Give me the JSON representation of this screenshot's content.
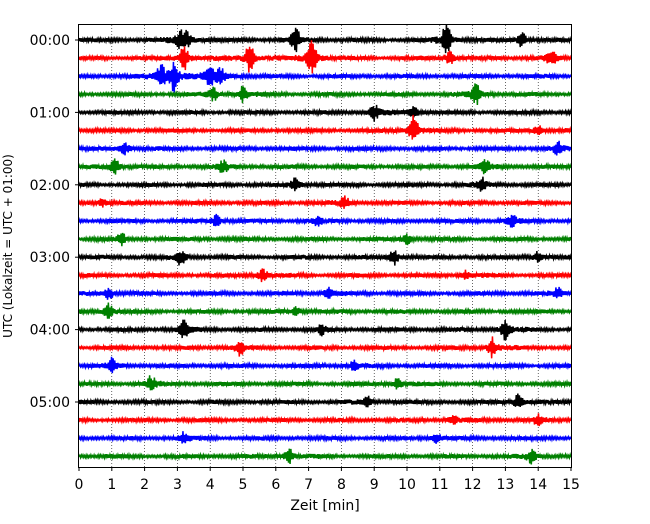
{
  "chart_data": {
    "type": "line",
    "title": "",
    "xlabel": "Zeit  [min]",
    "ylabel": "UTC (Lokalzeit = UTC + 01:00)",
    "xlim": [
      0,
      15
    ],
    "x_ticks": [
      "0",
      "1",
      "2",
      "3",
      "4",
      "5",
      "6",
      "7",
      "8",
      "9",
      "10",
      "11",
      "12",
      "13",
      "14",
      "15"
    ],
    "y_ticks": [
      "00:00",
      "01:00",
      "02:00",
      "03:00",
      "04:00",
      "05:00"
    ],
    "grid": "vertical dotted lines at each minute",
    "legend": "none",
    "trace_colors": [
      "#000000",
      "#ff0000",
      "#0000ff",
      "#008000"
    ],
    "trace_interval_minutes": 15,
    "series_count": 24,
    "series": [
      {
        "start": "00:00",
        "color": "#000000",
        "events": [
          [
            3.1,
            0.7
          ],
          [
            3.3,
            0.6
          ],
          [
            6.6,
            0.9
          ],
          [
            11.2,
            1.3
          ],
          [
            13.5,
            0.6
          ]
        ]
      },
      {
        "start": "00:15",
        "color": "#ff0000",
        "events": [
          [
            3.2,
            1.1
          ],
          [
            5.2,
            1.2
          ],
          [
            7.1,
            1.6
          ],
          [
            11.3,
            0.5
          ],
          [
            14.4,
            0.6
          ]
        ]
      },
      {
        "start": "00:30",
        "color": "#0000ff",
        "events": [
          [
            2.5,
            0.9
          ],
          [
            2.9,
            1.2
          ],
          [
            4.3,
            0.9
          ],
          [
            4.0,
            0.7
          ]
        ]
      },
      {
        "start": "00:45",
        "color": "#008000",
        "events": [
          [
            4.1,
            0.5
          ],
          [
            5.0,
            0.6
          ],
          [
            12.1,
            0.8
          ]
        ]
      },
      {
        "start": "01:00",
        "color": "#000000",
        "events": [
          [
            9.0,
            0.6
          ],
          [
            10.2,
            0.5
          ]
        ]
      },
      {
        "start": "01:15",
        "color": "#ff0000",
        "events": [
          [
            10.2,
            1.2
          ],
          [
            14.0,
            0.4
          ]
        ]
      },
      {
        "start": "01:30",
        "color": "#0000ff",
        "events": [
          [
            1.4,
            0.5
          ],
          [
            14.6,
            0.5
          ]
        ]
      },
      {
        "start": "01:45",
        "color": "#008000",
        "events": [
          [
            1.1,
            0.6
          ],
          [
            4.4,
            0.5
          ],
          [
            12.4,
            0.6
          ]
        ]
      },
      {
        "start": "02:00",
        "color": "#000000",
        "events": [
          [
            6.6,
            0.5
          ],
          [
            12.3,
            0.5
          ]
        ]
      },
      {
        "start": "02:15",
        "color": "#ff0000",
        "events": [
          [
            8.1,
            0.5
          ],
          [
            0.7,
            0.3
          ]
        ]
      },
      {
        "start": "02:30",
        "color": "#0000ff",
        "events": [
          [
            4.2,
            0.5
          ],
          [
            7.3,
            0.4
          ],
          [
            13.2,
            0.5
          ]
        ]
      },
      {
        "start": "02:45",
        "color": "#008000",
        "events": [
          [
            1.3,
            0.4
          ],
          [
            10.0,
            0.4
          ]
        ]
      },
      {
        "start": "03:00",
        "color": "#000000",
        "events": [
          [
            3.1,
            0.6
          ],
          [
            9.6,
            0.6
          ],
          [
            14.0,
            0.5
          ]
        ]
      },
      {
        "start": "03:15",
        "color": "#ff0000",
        "events": [
          [
            5.6,
            0.5
          ],
          [
            11.8,
            0.4
          ]
        ]
      },
      {
        "start": "03:30",
        "color": "#0000ff",
        "events": [
          [
            0.9,
            0.5
          ],
          [
            7.6,
            0.4
          ],
          [
            14.6,
            0.4
          ]
        ]
      },
      {
        "start": "03:45",
        "color": "#008000",
        "events": [
          [
            0.9,
            0.6
          ],
          [
            6.6,
            0.4
          ]
        ]
      },
      {
        "start": "04:00",
        "color": "#000000",
        "events": [
          [
            3.2,
            0.7
          ],
          [
            7.4,
            0.4
          ],
          [
            13.0,
            0.8
          ]
        ]
      },
      {
        "start": "04:15",
        "color": "#ff0000",
        "events": [
          [
            4.9,
            0.6
          ],
          [
            12.6,
            0.8
          ]
        ]
      },
      {
        "start": "04:30",
        "color": "#0000ff",
        "events": [
          [
            1.0,
            0.6
          ],
          [
            8.4,
            0.4
          ]
        ]
      },
      {
        "start": "04:45",
        "color": "#008000",
        "events": [
          [
            2.2,
            0.6
          ],
          [
            9.7,
            0.4
          ]
        ]
      },
      {
        "start": "05:00",
        "color": "#000000",
        "events": [
          [
            8.8,
            0.5
          ],
          [
            13.4,
            0.6
          ]
        ]
      },
      {
        "start": "05:15",
        "color": "#ff0000",
        "events": [
          [
            11.4,
            0.4
          ],
          [
            14.0,
            0.4
          ]
        ]
      },
      {
        "start": "05:30",
        "color": "#0000ff",
        "events": [
          [
            3.2,
            0.5
          ],
          [
            10.9,
            0.4
          ]
        ]
      },
      {
        "start": "05:45",
        "color": "#008000",
        "events": [
          [
            6.4,
            0.6
          ],
          [
            13.8,
            0.5
          ]
        ]
      }
    ]
  }
}
